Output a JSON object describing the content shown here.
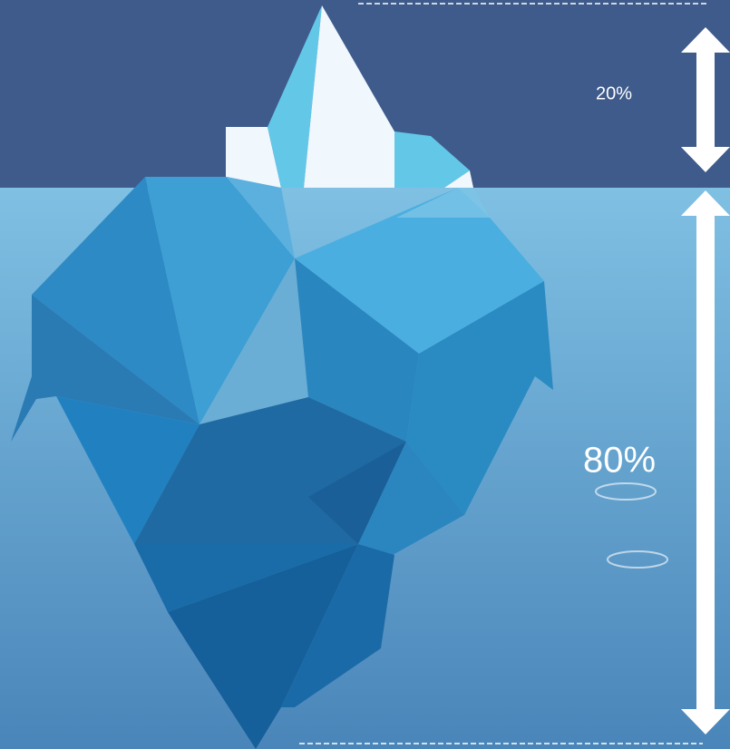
{
  "labels": {
    "above_water": "20%",
    "below_water": "80%"
  }
}
